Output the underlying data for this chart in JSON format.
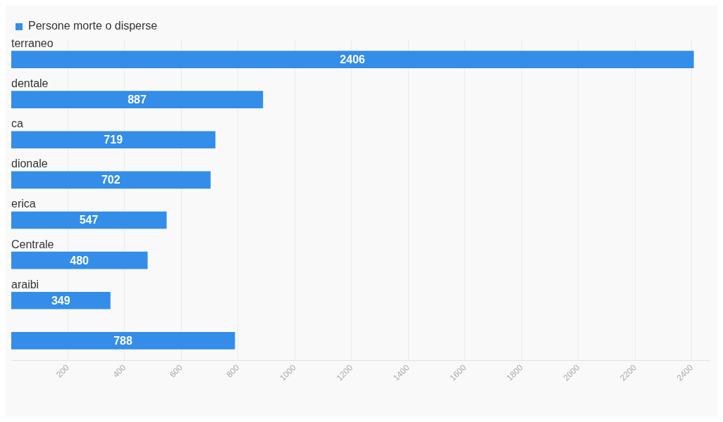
{
  "chart_data": {
    "type": "bar",
    "orientation": "horizontal",
    "categories": [
      "terraneo",
      "dentale",
      "ca",
      "dionale",
      "erica",
      "Centrale",
      "araibi",
      null
    ],
    "series": [
      {
        "name": "Persone morte o disperse",
        "color": "#338de9",
        "values": [
          2406,
          887,
          719,
          702,
          547,
          480,
          349,
          788
        ]
      }
    ],
    "xlim": [
      0,
      2460
    ],
    "xticks": [
      200,
      400,
      600,
      800,
      1000,
      1200,
      1400,
      1600,
      1800,
      2000,
      2200,
      2400
    ],
    "grid": "x",
    "legend": "top left",
    "data_labels": true,
    "tick_labels": "x"
  }
}
